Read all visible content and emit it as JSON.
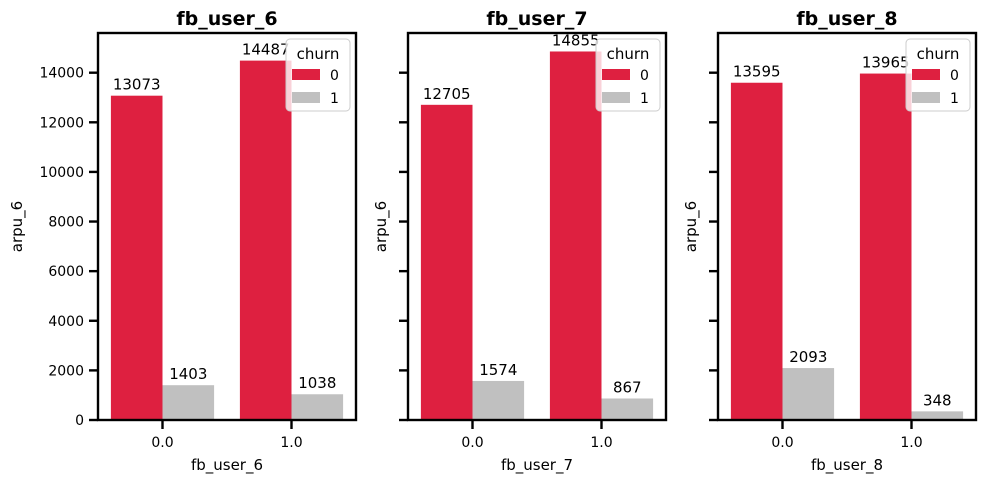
{
  "colors": {
    "churn_0": "#DE2040",
    "churn_1": "#C0C0C0"
  },
  "chart_data": [
    {
      "type": "bar",
      "title": "fb_user_6",
      "xlabel": "fb_user_6",
      "ylabel": "arpu_6",
      "categories": [
        "0.0",
        "1.0"
      ],
      "ylim": [
        0,
        15600
      ],
      "yticks": [
        0,
        2000,
        4000,
        6000,
        8000,
        10000,
        12000,
        14000
      ],
      "legend": {
        "title": "churn",
        "placement": "top-right"
      },
      "series": [
        {
          "name": "0",
          "values": [
            13073,
            14487
          ]
        },
        {
          "name": "1",
          "values": [
            1403,
            1038
          ]
        }
      ]
    },
    {
      "type": "bar",
      "title": "fb_user_7",
      "xlabel": "fb_user_7",
      "ylabel": "arpu_6",
      "categories": [
        "0.0",
        "1.0"
      ],
      "ylim": [
        0,
        15600
      ],
      "yticks": [
        0,
        2000,
        4000,
        6000,
        8000,
        10000,
        12000,
        14000
      ],
      "legend": {
        "title": "churn",
        "placement": "top-right"
      },
      "series": [
        {
          "name": "0",
          "values": [
            12705,
            14855
          ]
        },
        {
          "name": "1",
          "values": [
            1574,
            867
          ]
        }
      ]
    },
    {
      "type": "bar",
      "title": "fb_user_8",
      "xlabel": "fb_user_8",
      "ylabel": "arpu_6",
      "categories": [
        "0.0",
        "1.0"
      ],
      "ylim": [
        0,
        15600
      ],
      "yticks": [
        0,
        2000,
        4000,
        6000,
        8000,
        10000,
        12000,
        14000
      ],
      "legend": {
        "title": "churn",
        "placement": "top-right"
      },
      "series": [
        {
          "name": "0",
          "values": [
            13595,
            13965
          ]
        },
        {
          "name": "1",
          "values": [
            2093,
            348
          ]
        }
      ]
    }
  ]
}
